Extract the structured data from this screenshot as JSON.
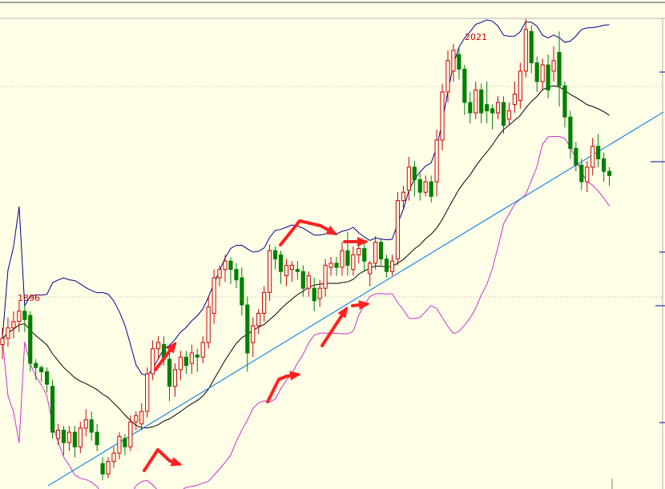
{
  "chart_data": {
    "type": "candlestick",
    "title": "",
    "xlabel": "",
    "ylabel": "",
    "ylim": [
      1780,
      2100
    ],
    "grid": true,
    "annotations": {
      "high_label": "2021",
      "low_label": "1896"
    },
    "colors": {
      "background": "#ffffe8",
      "up_candle": "#cc0000",
      "down_candle": "#008000",
      "middle_band": "#000000",
      "upper_band": "#00008b",
      "lower_band": "#cc33cc",
      "trendline": "#1e88e5",
      "arrows": "#ff2020"
    },
    "candles": [
      [
        1877,
        1880,
        1870,
        1885
      ],
      [
        1880,
        1885,
        1876,
        1890
      ],
      [
        1885,
        1888,
        1880,
        1893
      ],
      [
        1888,
        1893,
        1883,
        1898
      ],
      [
        1893,
        1889,
        1883,
        1896
      ],
      [
        1891,
        1868,
        1864,
        1893
      ],
      [
        1868,
        1866,
        1860,
        1870
      ],
      [
        1866,
        1864,
        1859,
        1867
      ],
      [
        1864,
        1858,
        1854,
        1866
      ],
      [
        1857,
        1835,
        1832,
        1860
      ],
      [
        1832,
        1836,
        1829,
        1839
      ],
      [
        1836,
        1830,
        1824,
        1838
      ],
      [
        1830,
        1835,
        1826,
        1838
      ],
      [
        1835,
        1828,
        1823,
        1838
      ],
      [
        1828,
        1837,
        1825,
        1840
      ],
      [
        1837,
        1841,
        1833,
        1846
      ],
      [
        1841,
        1835,
        1831,
        1845
      ],
      [
        1835,
        1829,
        1826,
        1839
      ],
      [
        1820,
        1815,
        1812,
        1823
      ],
      [
        1815,
        1821,
        1813,
        1823
      ],
      [
        1821,
        1825,
        1818,
        1828
      ],
      [
        1825,
        1833,
        1822,
        1835
      ],
      [
        1832,
        1828,
        1824,
        1834
      ],
      [
        1828,
        1840,
        1826,
        1843
      ],
      [
        1840,
        1843,
        1836,
        1845
      ],
      [
        1839,
        1845,
        1836,
        1849
      ],
      [
        1845,
        1863,
        1842,
        1866
      ],
      [
        1863,
        1875,
        1860,
        1879
      ],
      [
        1875,
        1878,
        1870,
        1881
      ],
      [
        1877,
        1870,
        1867,
        1881
      ],
      [
        1870,
        1857,
        1850,
        1877
      ],
      [
        1857,
        1865,
        1852,
        1868
      ],
      [
        1865,
        1871,
        1860,
        1874
      ],
      [
        1871,
        1867,
        1863,
        1874
      ],
      [
        1868,
        1873,
        1863,
        1877
      ],
      [
        1872,
        1871,
        1864,
        1875
      ],
      [
        1871,
        1878,
        1868,
        1881
      ],
      [
        1878,
        1895,
        1875,
        1900
      ],
      [
        1892,
        1909,
        1887,
        1913
      ],
      [
        1909,
        1913,
        1905,
        1915
      ],
      [
        1913,
        1917,
        1907,
        1920
      ],
      [
        1917,
        1913,
        1906,
        1919
      ],
      [
        1913,
        1908,
        1904,
        1916
      ],
      [
        1909,
        1896,
        1891,
        1914
      ],
      [
        1896,
        1873,
        1864,
        1900
      ],
      [
        1878,
        1886,
        1871,
        1890
      ],
      [
        1886,
        1892,
        1882,
        1894
      ],
      [
        1892,
        1902,
        1888,
        1905
      ],
      [
        1902,
        1922,
        1898,
        1925
      ],
      [
        1922,
        1918,
        1913,
        1924
      ],
      [
        1920,
        1912,
        1906,
        1922
      ],
      [
        1910,
        1915,
        1905,
        1918
      ],
      [
        1913,
        1915,
        1907,
        1917
      ],
      [
        1913,
        1912,
        1908,
        1917
      ],
      [
        1912,
        1904,
        1900,
        1915
      ],
      [
        1904,
        1910,
        1900,
        1912
      ],
      [
        1904,
        1898,
        1893,
        1909
      ],
      [
        1899,
        1904,
        1895,
        1908
      ],
      [
        1904,
        1915,
        1900,
        1918
      ],
      [
        1914,
        1916,
        1910,
        1919
      ],
      [
        1916,
        1914,
        1910,
        1919
      ],
      [
        1914,
        1922,
        1910,
        1926
      ],
      [
        1922,
        1915,
        1910,
        1931
      ],
      [
        1913,
        1920,
        1910,
        1924
      ],
      [
        1920,
        1923,
        1916,
        1926
      ],
      [
        1923,
        1917,
        1912,
        1926
      ],
      [
        1911,
        1916,
        1905,
        1917
      ],
      [
        1916,
        1926,
        1913,
        1929
      ],
      [
        1926,
        1918,
        1915,
        1928
      ],
      [
        1918,
        1912,
        1909,
        1920
      ],
      [
        1912,
        1917,
        1910,
        1920
      ],
      [
        1918,
        1946,
        1915,
        1950
      ],
      [
        1946,
        1950,
        1942,
        1953
      ],
      [
        1951,
        1962,
        1946,
        1967
      ],
      [
        1962,
        1956,
        1948,
        1965
      ],
      [
        1956,
        1950,
        1946,
        1959
      ],
      [
        1950,
        1955,
        1948,
        1958
      ],
      [
        1955,
        1948,
        1945,
        1958
      ],
      [
        1955,
        1975,
        1948,
        1980
      ],
      [
        1975,
        1998,
        1970,
        2002
      ],
      [
        1998,
        2013,
        1993,
        2018
      ],
      [
        2008,
        2018,
        2003,
        2021
      ],
      [
        2016,
        2009,
        2004,
        2019
      ],
      [
        2009,
        1993,
        1987,
        2011
      ],
      [
        1993,
        1988,
        1983,
        1998
      ],
      [
        1988,
        1999,
        1985,
        2003
      ],
      [
        1999,
        1988,
        1983,
        2002
      ],
      [
        1992,
        1989,
        1983,
        2003
      ],
      [
        1990,
        1988,
        1980,
        1992
      ],
      [
        1988,
        1993,
        1985,
        1996
      ],
      [
        1993,
        1982,
        1978,
        1996
      ],
      [
        1985,
        1989,
        1982,
        1993
      ],
      [
        1992,
        1997,
        1988,
        2003
      ],
      [
        1994,
        2008,
        1990,
        2012
      ],
      [
        2008,
        2028,
        2005,
        2033
      ],
      [
        2027,
        2012,
        2007,
        2030
      ],
      [
        2012,
        2003,
        1998,
        2015
      ],
      [
        2003,
        2011,
        1999,
        2014
      ],
      [
        2011,
        1999,
        1995,
        2016
      ],
      [
        2008,
        2013,
        2003,
        2020
      ],
      [
        2017,
        2001,
        1991,
        2027
      ],
      [
        2001,
        1986,
        1981,
        2003
      ],
      [
        1986,
        1971,
        1966,
        1989
      ],
      [
        1971,
        1963,
        1960,
        1974
      ],
      [
        1963,
        1955,
        1951,
        1966
      ],
      [
        1955,
        1962,
        1950,
        1965
      ],
      [
        1962,
        1972,
        1958,
        1976
      ],
      [
        1972,
        1966,
        1962,
        1978
      ],
      [
        1966,
        1960,
        1955,
        1969
      ],
      [
        1960,
        1958,
        1953,
        1962
      ]
    ]
  }
}
